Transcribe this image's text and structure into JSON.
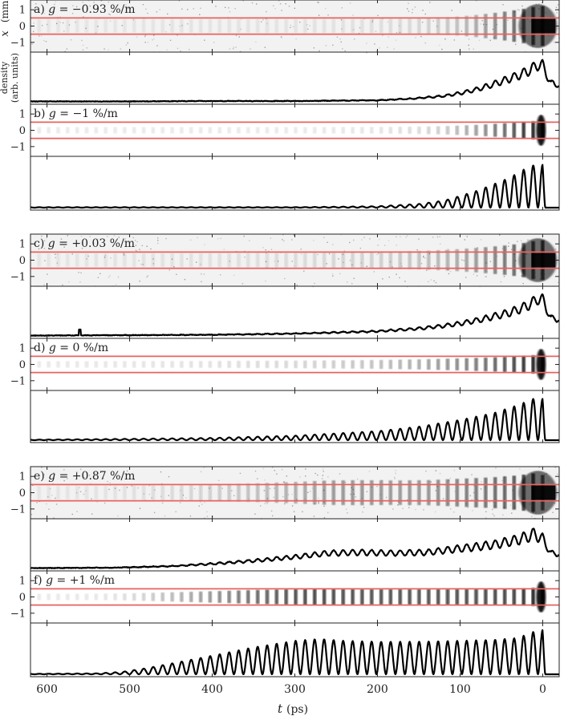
{
  "figure": {
    "x_axis_label_var": "t",
    "x_axis_label_unit": "(ps)",
    "y_axis_label_var": "x",
    "y_axis_label_unit": "(mm)",
    "density_label_line1": "density",
    "density_label_line2": "(arb. units)",
    "band_color": "#e8625f",
    "x_ticks": [
      "600",
      "500",
      "400",
      "300",
      "200",
      "100",
      "0"
    ],
    "y_ticks": [
      "1",
      "0",
      "-1"
    ]
  },
  "chart_data": [
    {
      "type": "heatmap",
      "panel": "a",
      "label_prefix": "a)",
      "label_eq": "g = −0.93 %/m",
      "kind": "measured",
      "x_range_ps": [
        620,
        -20
      ],
      "x_ticks": [
        600,
        500,
        400,
        300,
        200,
        100,
        0
      ],
      "y_range_mm": [
        -1.6,
        1.6
      ],
      "y_ticks": [
        1,
        0,
        -1
      ],
      "band_mm": [
        -0.5,
        0.5
      ],
      "modulation_onset_ps": 200,
      "head_ps": 0
    },
    {
      "type": "line",
      "panel": "a-profile",
      "ylabel": "density (arb. units)",
      "x": [
        620,
        500,
        420,
        300,
        200,
        160,
        120,
        100,
        80,
        60,
        40,
        25,
        12,
        5,
        0,
        -10,
        -20
      ],
      "envelope": [
        0.01,
        0.01,
        0.02,
        0.02,
        0.04,
        0.08,
        0.15,
        0.22,
        0.32,
        0.45,
        0.6,
        0.72,
        0.86,
        0.98,
        0.93,
        0.48,
        0.44
      ],
      "modulation_period_ps": 11.5,
      "modulation_depth": 0.28
    },
    {
      "type": "heatmap",
      "panel": "b",
      "label_prefix": "b)",
      "label_eq": "g = −1 %/m",
      "kind": "simulated",
      "x_range_ps": [
        620,
        -20
      ],
      "x_ticks": [
        600,
        500,
        400,
        300,
        200,
        100,
        0
      ],
      "y_range_mm": [
        -1.6,
        1.6
      ],
      "y_ticks": [
        1,
        0,
        -1
      ],
      "band_mm": [
        -0.5,
        0.5
      ],
      "microbunch_period_ps": 11.5,
      "head_ps": 0
    },
    {
      "type": "line",
      "panel": "b-profile",
      "x": [
        620,
        300,
        200,
        150,
        120,
        100,
        80,
        60,
        40,
        25,
        12,
        5,
        0,
        -3
      ],
      "envelope": [
        0.01,
        0.01,
        0.03,
        0.08,
        0.15,
        0.25,
        0.36,
        0.5,
        0.64,
        0.8,
        0.9,
        1.0,
        0.92,
        0.0
      ],
      "modulation_period_ps": 11.5,
      "modulation_depth": 1.0
    },
    {
      "type": "heatmap",
      "panel": "c",
      "label_prefix": "c)",
      "label_eq": "g = +0.03 %/m",
      "kind": "measured",
      "x_range_ps": [
        620,
        -20
      ],
      "x_ticks": [
        600,
        500,
        400,
        300,
        200,
        100,
        0
      ],
      "y_range_mm": [
        -1.6,
        1.6
      ],
      "y_ticks": [
        1,
        0,
        -1
      ],
      "band_mm": [
        -0.5,
        0.5
      ],
      "modulation_onset_ps": 320,
      "head_ps": 0
    },
    {
      "type": "line",
      "panel": "c-profile",
      "x": [
        620,
        500,
        400,
        300,
        200,
        150,
        120,
        100,
        80,
        60,
        40,
        25,
        12,
        5,
        0,
        -10,
        -20
      ],
      "envelope": [
        0.01,
        0.02,
        0.03,
        0.06,
        0.12,
        0.19,
        0.26,
        0.32,
        0.4,
        0.5,
        0.6,
        0.72,
        0.86,
        0.98,
        0.93,
        0.46,
        0.43
      ],
      "modulation_period_ps": 11.5,
      "modulation_depth": 0.28,
      "spike_ps": 560
    },
    {
      "type": "heatmap",
      "panel": "d",
      "label_prefix": "d)",
      "label_eq": "g = 0 %/m",
      "kind": "simulated",
      "x_range_ps": [
        620,
        -20
      ],
      "x_ticks": [
        600,
        500,
        400,
        300,
        200,
        100,
        0
      ],
      "y_range_mm": [
        -1.6,
        1.6
      ],
      "y_ticks": [
        1,
        0,
        -1
      ],
      "band_mm": [
        -0.5,
        0.5
      ],
      "microbunch_period_ps": 11.5,
      "head_ps": 0
    },
    {
      "type": "line",
      "panel": "d-profile",
      "x": [
        620,
        500,
        400,
        300,
        200,
        150,
        100,
        60,
        30,
        10,
        5,
        0,
        -3
      ],
      "envelope": [
        0.01,
        0.03,
        0.05,
        0.1,
        0.2,
        0.3,
        0.45,
        0.6,
        0.78,
        0.93,
        1.0,
        0.92,
        0.0
      ],
      "modulation_period_ps": 11.5,
      "modulation_depth": 1.0
    },
    {
      "type": "heatmap",
      "panel": "e",
      "label_prefix": "e)",
      "label_eq": "g = +0.87 %/m",
      "kind": "measured",
      "x_range_ps": [
        620,
        -20
      ],
      "x_ticks": [
        600,
        500,
        400,
        300,
        200,
        100,
        0
      ],
      "y_range_mm": [
        -1.6,
        1.6
      ],
      "y_ticks": [
        1,
        0,
        -1
      ],
      "band_mm": [
        -0.5,
        0.5
      ],
      "modulation_onset_ps": 480,
      "head_ps": 0
    },
    {
      "type": "line",
      "panel": "e-profile",
      "x": [
        620,
        520,
        450,
        400,
        350,
        300,
        260,
        220,
        180,
        140,
        100,
        60,
        30,
        10,
        0,
        -10,
        -20
      ],
      "envelope": [
        0.01,
        0.02,
        0.06,
        0.12,
        0.2,
        0.3,
        0.4,
        0.42,
        0.4,
        0.42,
        0.52,
        0.62,
        0.75,
        0.9,
        0.78,
        0.4,
        0.38
      ],
      "modulation_period_ps": 11.5,
      "modulation_depth": 0.3
    },
    {
      "type": "heatmap",
      "panel": "f",
      "label_prefix": "f)",
      "label_eq": "g = +1 %/m",
      "kind": "simulated",
      "x_range_ps": [
        620,
        -20
      ],
      "x_ticks": [
        600,
        500,
        400,
        300,
        200,
        100,
        0
      ],
      "y_range_mm": [
        -1.6,
        1.6
      ],
      "y_ticks": [
        1,
        0,
        -1
      ],
      "band_mm": [
        -0.5,
        0.5
      ],
      "microbunch_period_ps": 11.5,
      "head_ps": 0
    },
    {
      "type": "line",
      "panel": "f-profile",
      "x": [
        620,
        540,
        510,
        480,
        450,
        400,
        350,
        300,
        270,
        240,
        200,
        150,
        100,
        60,
        30,
        10,
        5,
        0,
        -3
      ],
      "envelope": [
        0.01,
        0.02,
        0.05,
        0.13,
        0.23,
        0.4,
        0.58,
        0.72,
        0.76,
        0.72,
        0.7,
        0.7,
        0.72,
        0.74,
        0.78,
        0.92,
        1.0,
        0.95,
        0.0
      ],
      "modulation_period_ps": 11.5,
      "modulation_depth": 1.0
    }
  ]
}
